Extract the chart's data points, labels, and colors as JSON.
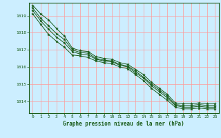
{
  "title": "Graphe pression niveau de la mer (hPa)",
  "bg_color": "#cceeff",
  "plot_bg_color": "#cceeff",
  "grid_color_major": "#ff9999",
  "grid_color_minor": "#ffcccc",
  "line_color": "#1a5c1a",
  "marker_color": "#1a5c1a",
  "label_color": "#1a5c1a",
  "xlim": [
    -0.5,
    23.5
  ],
  "ylim": [
    1013.3,
    1019.75
  ],
  "yticks": [
    1014,
    1015,
    1016,
    1017,
    1018,
    1019
  ],
  "xticks": [
    0,
    1,
    2,
    3,
    4,
    5,
    6,
    7,
    8,
    9,
    10,
    11,
    12,
    13,
    14,
    15,
    16,
    17,
    18,
    19,
    20,
    21,
    22,
    23
  ],
  "series": [
    [
      1019.6,
      1019.1,
      1018.75,
      1018.25,
      1017.8,
      1017.1,
      1016.95,
      1016.9,
      1016.6,
      1016.5,
      1016.45,
      1016.25,
      1016.15,
      1015.85,
      1015.55,
      1015.1,
      1014.75,
      1014.4,
      1013.9,
      1013.85,
      1013.85,
      1013.9,
      1013.85,
      1013.85
    ],
    [
      1019.45,
      1018.85,
      1018.4,
      1017.95,
      1017.6,
      1017.0,
      1016.85,
      1016.8,
      1016.5,
      1016.4,
      1016.35,
      1016.15,
      1016.05,
      1015.75,
      1015.4,
      1015.0,
      1014.65,
      1014.3,
      1013.8,
      1013.75,
      1013.75,
      1013.8,
      1013.75,
      1013.75
    ],
    [
      1019.3,
      1018.7,
      1018.2,
      1017.75,
      1017.4,
      1016.9,
      1016.75,
      1016.7,
      1016.45,
      1016.35,
      1016.3,
      1016.1,
      1016.0,
      1015.65,
      1015.35,
      1014.9,
      1014.55,
      1014.2,
      1013.75,
      1013.65,
      1013.65,
      1013.7,
      1013.65,
      1013.65
    ],
    [
      1019.1,
      1018.5,
      1017.9,
      1017.5,
      1017.15,
      1016.7,
      1016.65,
      1016.55,
      1016.35,
      1016.25,
      1016.2,
      1016.0,
      1015.9,
      1015.55,
      1015.2,
      1014.75,
      1014.4,
      1014.05,
      1013.65,
      1013.55,
      1013.55,
      1013.6,
      1013.55,
      1013.55
    ]
  ]
}
